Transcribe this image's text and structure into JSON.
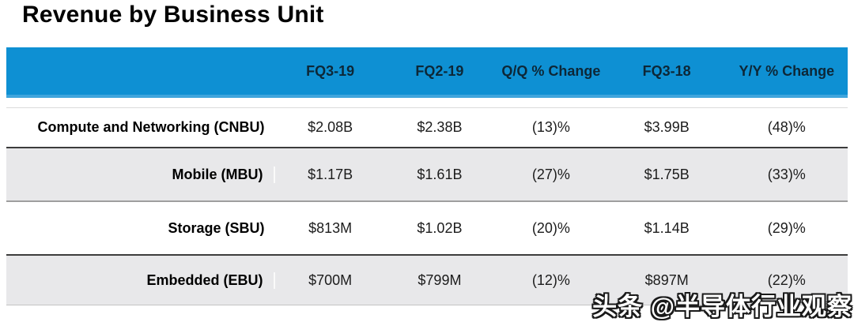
{
  "title": "Revenue by Business Unit",
  "watermark": "头条 @半导体行业观察",
  "colors": {
    "header_bg": "#0e90d3",
    "header_text": "#0d2737",
    "alt_row_bg": "#e8e8ea",
    "separator_dark": "#3c3c3c",
    "separator_mid": "#9e9e9e",
    "title_color": "#000000"
  },
  "chart_data": {
    "type": "table",
    "title": "Revenue by Business Unit",
    "columns": [
      "",
      "FQ3-19",
      "FQ2-19",
      "Q/Q % Change",
      "FQ3-18",
      "Y/Y % Change"
    ],
    "rows": [
      [
        "Compute and Networking (CNBU)",
        "$2.08B",
        "$2.38B",
        "(13)%",
        "$3.99B",
        "(48)%"
      ],
      [
        "Mobile (MBU)",
        "$1.17B",
        "$1.61B",
        "(27)%",
        "$1.75B",
        "(33)%"
      ],
      [
        "Storage (SBU)",
        "$813M",
        "$1.02B",
        "(20)%",
        "$1.14B",
        "(29)%"
      ],
      [
        "Embedded (EBU)",
        "$700M",
        "$799M",
        "(12)%",
        "$897M",
        "(22)%"
      ]
    ]
  }
}
